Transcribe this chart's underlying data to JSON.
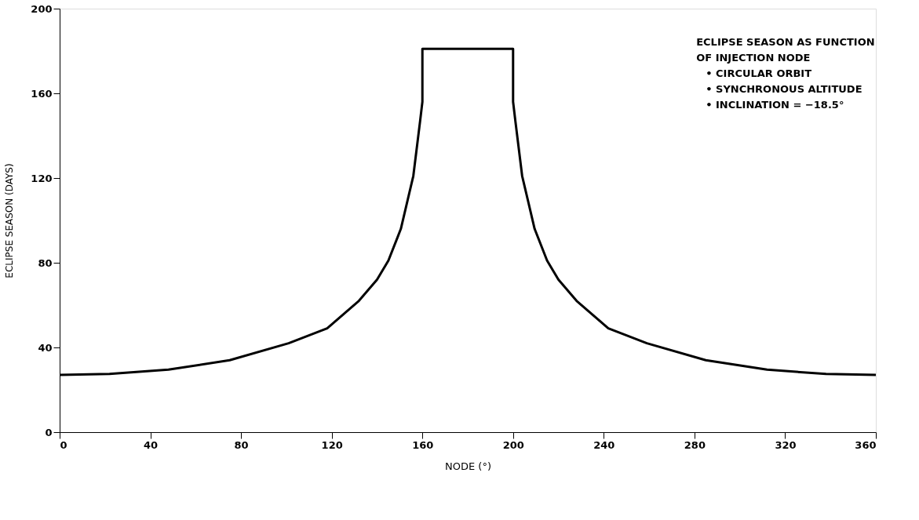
{
  "chart_data": {
    "type": "line",
    "xlabel": "NODE (°)",
    "ylabel": "ECLIPSE SEASON (DAYS)",
    "x": [
      0,
      22,
      48,
      75,
      101,
      118,
      132,
      140,
      145,
      150.5,
      156,
      159,
      160,
      160,
      200,
      200,
      201,
      204,
      209.5,
      215,
      220,
      228,
      242,
      259,
      285,
      312,
      338,
      360
    ],
    "series": [
      {
        "color": "#000000",
        "values": [
          27,
          27.5,
          29.5,
          34,
          42,
          49,
          62,
          72,
          81,
          96,
          121,
          147,
          156,
          181,
          181,
          156,
          147,
          121,
          96,
          81,
          72,
          62,
          49,
          42,
          34,
          29.5,
          27.5,
          27
        ]
      }
    ],
    "xlim": [
      0,
      360
    ],
    "xticks": [
      0,
      40,
      80,
      120,
      160,
      200,
      240,
      280,
      320,
      360
    ],
    "ylim": [
      0,
      200
    ],
    "yticks": [
      0,
      40,
      80,
      120,
      160,
      200
    ],
    "grid": false,
    "marker": "none",
    "line_style": "solid",
    "annotations": [
      "ECLIPSE SEASON AS FUNCTION",
      "OF INJECTION NODE",
      "• CIRCULAR ORBIT",
      "• SYNCHRONOUS ALTITUDE",
      "• INCLINATION = −18.5°"
    ]
  }
}
